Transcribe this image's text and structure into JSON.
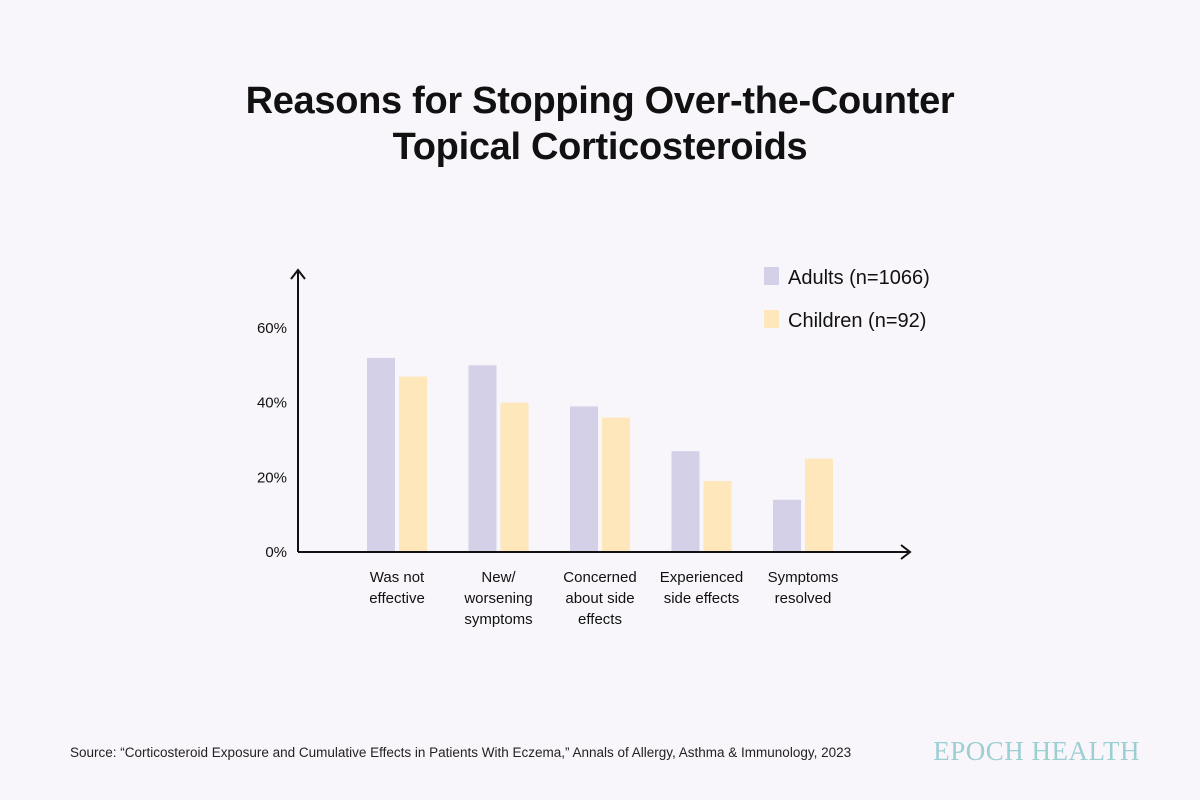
{
  "title_lines": [
    "Reasons for Stopping Over-the-Counter",
    "Topical Corticosteroids"
  ],
  "source": "Source: “Corticosteroid Exposure and Cumulative Effects in Patients With Eczema,” Annals of Allergy, Asthma & Immunology, 2023",
  "brand": "EPOCH HEALTH",
  "colors": {
    "adults": "#d4d0e8",
    "children": "#fde7bb",
    "axis": "#111111",
    "background": "#f8f6fa",
    "brand": "#9ccfd2"
  },
  "chart_data": {
    "type": "bar",
    "title": "Reasons for Stopping Over-the-Counter Topical Corticosteroids",
    "categories": [
      [
        "Was not",
        "effective"
      ],
      [
        "New/",
        "worsening",
        "symptoms"
      ],
      [
        "Concerned",
        "about side",
        "effects"
      ],
      [
        "Experienced",
        "side effects"
      ],
      [
        "Symptoms",
        "resolved"
      ]
    ],
    "series": [
      {
        "name": "Adults (n=1066)",
        "values": [
          52,
          50,
          39,
          27,
          14
        ]
      },
      {
        "name": "Children (n=92)",
        "values": [
          47,
          40,
          36,
          19,
          25
        ]
      }
    ],
    "yticks": [
      0,
      20,
      40,
      60
    ],
    "ytick_labels": [
      "0%",
      "20%",
      "40%",
      "60%"
    ],
    "ylim": [
      0,
      60
    ],
    "grid": false,
    "legend": "top-right"
  }
}
